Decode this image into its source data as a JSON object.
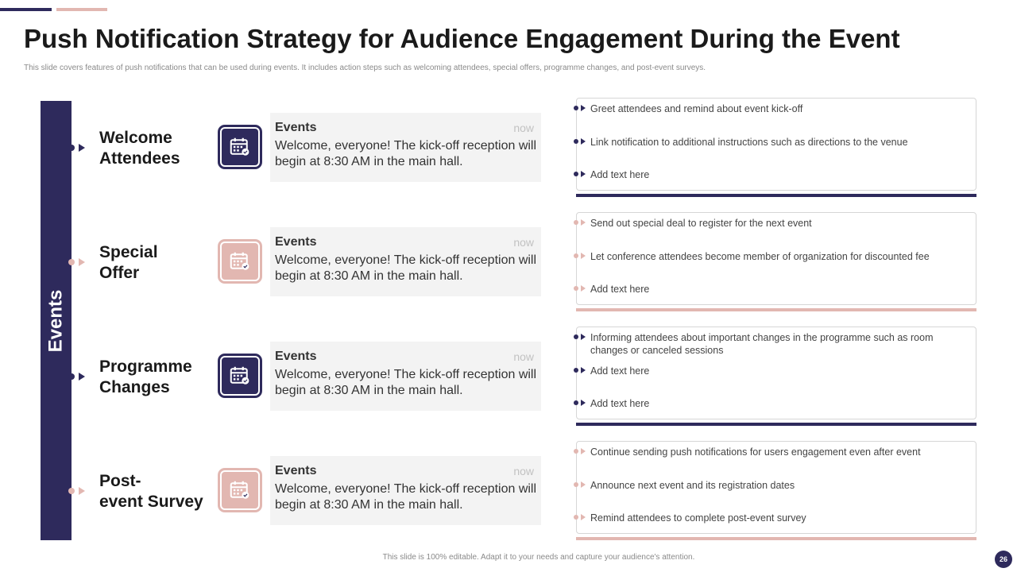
{
  "title": "Push Notification Strategy for Audience Engagement During the Event",
  "subtitle": "This slide covers features of push notifications that can be used during events. It includes action steps such as welcoming attendees, special offers, programme changes, and post-event surveys.",
  "sidebar_label": "Events",
  "colors": {
    "dark": "#2e2a5c",
    "pink": "#e2b7b1"
  },
  "rows": [
    {
      "label_line1": "Welcome",
      "label_line2": "Attendees",
      "theme": "dark",
      "icon": "calendar-icon",
      "notification": {
        "app": "Events",
        "time": "now",
        "message": "Welcome, everyone! The kick-off reception will begin at 8:30 AM in the main hall."
      },
      "bullets": [
        "Greet attendees and remind about event  kick-off",
        "Link notification to additional instructions such as directions to the venue",
        "Add text here"
      ]
    },
    {
      "label_line1": "Special",
      "label_line2": "Offer",
      "theme": "pink",
      "icon": "calendar-icon",
      "notification": {
        "app": "Events",
        "time": "now",
        "message": "Welcome, everyone! The kick-off reception will begin at 8:30 AM in the main hall."
      },
      "bullets": [
        "Send out special deal to register for the next event",
        "Let conference  attendees  become  member  of organization  for discounted fee",
        "Add text here"
      ]
    },
    {
      "label_line1": "Programme",
      "label_line2": "Changes",
      "theme": "dark",
      "icon": "calendar-icon",
      "notification": {
        "app": "Events",
        "time": "now",
        "message": "Welcome, everyone! The kick-off reception will begin at 8:30 AM in the main hall."
      },
      "bullets": [
        "Informing  attendees  about important changes in the programme  such as room changes or canceled sessions",
        "Add text here",
        "Add text here"
      ]
    },
    {
      "label_line1": "Post-",
      "label_line2": "event Survey",
      "theme": "pink",
      "icon": "calendar-icon",
      "notification": {
        "app": "Events",
        "time": "now",
        "message": "Welcome, everyone! The kick-off reception will begin at 8:30 AM in the main hall."
      },
      "bullets": [
        "Continue  sending push notifications for users engagement  even  after event",
        "Announce next event  and its registration dates",
        "Remind attendees to complete post-event  survey"
      ]
    }
  ],
  "footer": "This slide is 100% editable.  Adapt it to your needs and capture your audience's attention.",
  "page_number": "26"
}
